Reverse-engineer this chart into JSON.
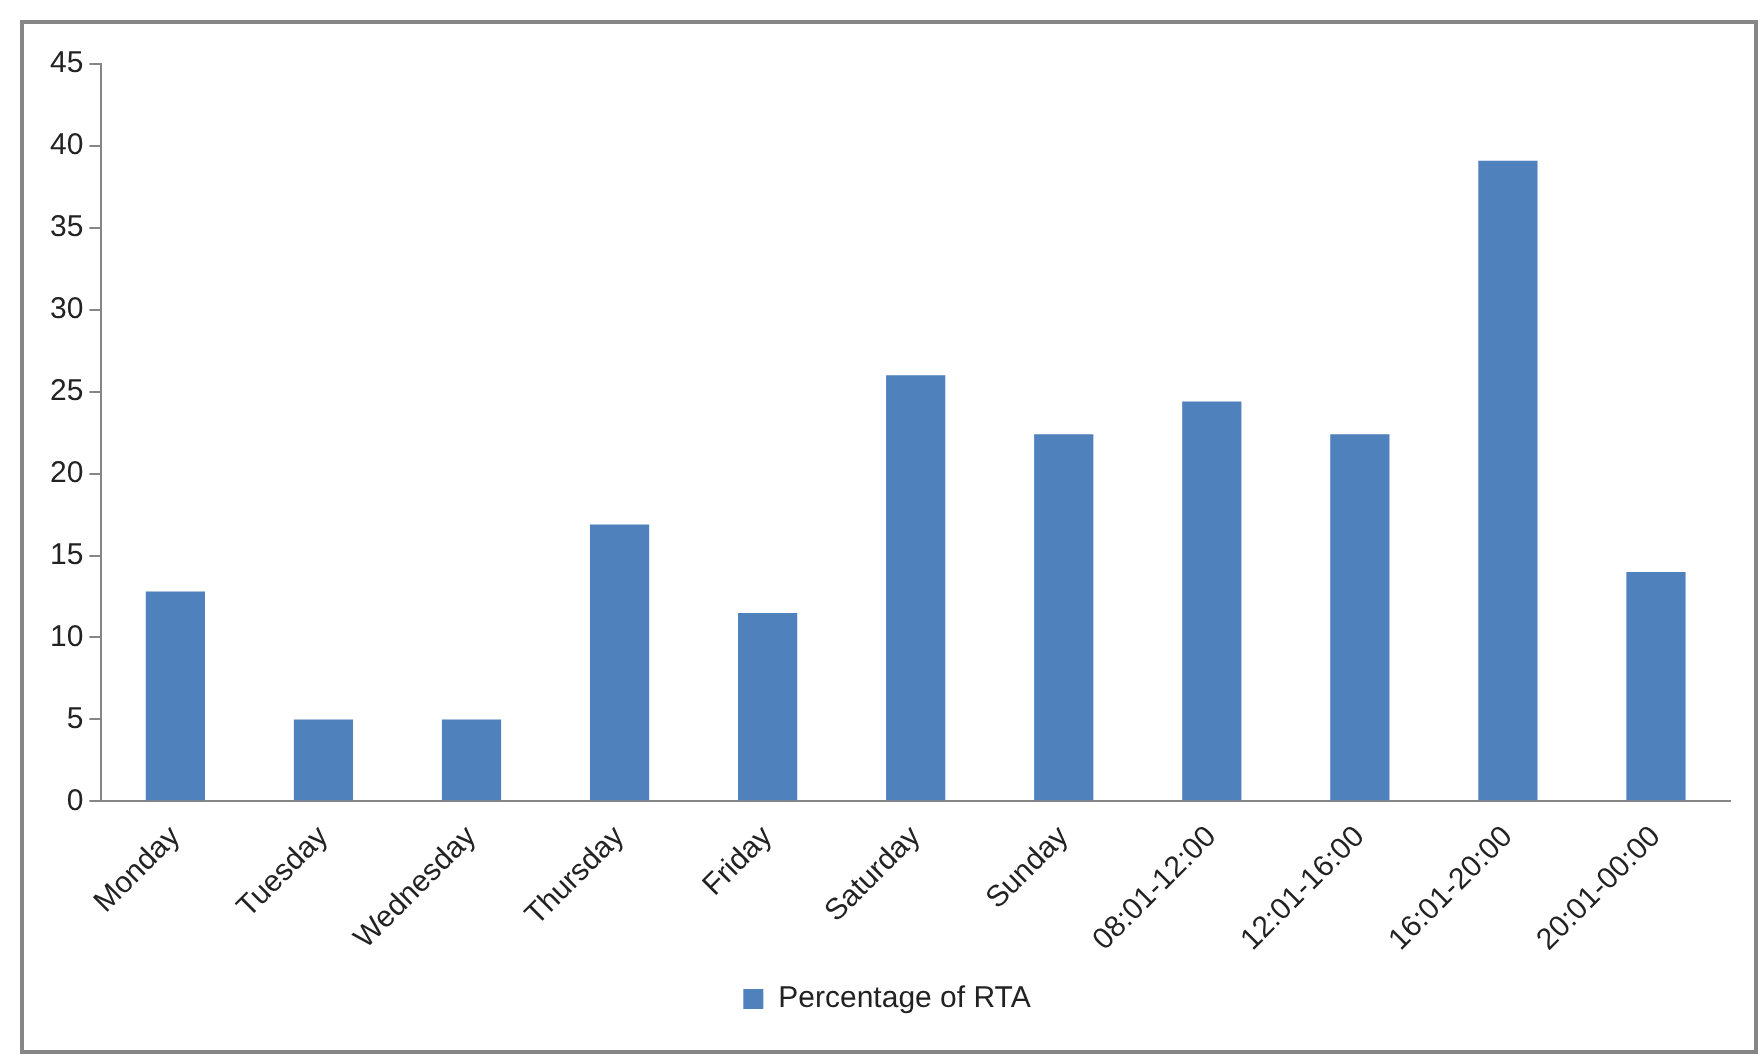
{
  "chart_data": {
    "type": "bar",
    "categories": [
      "Monday",
      "Tuesday",
      "Wednesday",
      "Thursday",
      "Friday",
      "Saturday",
      "Sunday",
      "08:01-12:00",
      "12:01-16:00",
      "16:01-20:00",
      "20:01-00:00"
    ],
    "series": [
      {
        "name": "Percentage of RTA",
        "color": "#4f81bd",
        "values": [
          12.8,
          5.0,
          5.0,
          16.9,
          11.5,
          26.0,
          22.4,
          24.4,
          22.4,
          39.1,
          14.0
        ]
      }
    ],
    "ylim": [
      0,
      45
    ],
    "yticks": [
      0,
      5,
      10,
      15,
      20,
      25,
      30,
      35,
      40,
      45
    ],
    "grid": false,
    "legend": "bottom"
  }
}
